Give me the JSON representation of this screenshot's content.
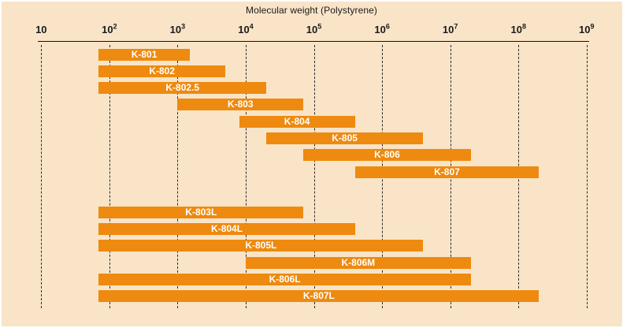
{
  "colors": {
    "page_background": "#FFFFFF",
    "panel_background": "#F9E4C8",
    "bar_fill": "#EE8A0F",
    "bar_label_text": "#FFFFFF",
    "axis_text": "#1A1A1A",
    "axis_line": "#111111",
    "gridline": "#2B2B2B"
  },
  "chart_data": {
    "type": "bar",
    "subtype": "horizontal-range-bars",
    "title": "Molecular weight (Polystyrene)",
    "x_axis": {
      "scale": "log10",
      "min": 10,
      "max": 1000000000,
      "grid": "vertical-dashed",
      "ticks": [
        {
          "value": 10,
          "base": "10",
          "sup": ""
        },
        {
          "value": 100,
          "base": "10",
          "sup": "2"
        },
        {
          "value": 1000,
          "base": "10",
          "sup": "3"
        },
        {
          "value": 10000,
          "base": "10",
          "sup": "4"
        },
        {
          "value": 100000,
          "base": "10",
          "sup": "5"
        },
        {
          "value": 1000000,
          "base": "10",
          "sup": "6"
        },
        {
          "value": 10000000,
          "base": "10",
          "sup": "7"
        },
        {
          "value": 100000000,
          "base": "10",
          "sup": "8"
        },
        {
          "value": 1000000000,
          "base": "10",
          "sup": "9"
        }
      ]
    },
    "bars": [
      {
        "label": "K-801",
        "group": 0,
        "mw_min": 70,
        "mw_max": 1500
      },
      {
        "label": "K-802",
        "group": 0,
        "mw_min": 70,
        "mw_max": 5000
      },
      {
        "label": "K-802.5",
        "group": 0,
        "mw_min": 70,
        "mw_max": 20000
      },
      {
        "label": "K-803",
        "group": 0,
        "mw_min": 1000,
        "mw_max": 70000
      },
      {
        "label": "K-804",
        "group": 0,
        "mw_min": 8000,
        "mw_max": 400000
      },
      {
        "label": "K-805",
        "group": 0,
        "mw_min": 20000,
        "mw_max": 4000000
      },
      {
        "label": "K-806",
        "group": 0,
        "mw_min": 70000,
        "mw_max": 20000000
      },
      {
        "label": "K-807",
        "group": 0,
        "mw_min": 400000,
        "mw_max": 200000000
      },
      {
        "label": "K-803L",
        "group": 1,
        "mw_min": 70,
        "mw_max": 70000
      },
      {
        "label": "K-804L",
        "group": 1,
        "mw_min": 70,
        "mw_max": 400000
      },
      {
        "label": "K-805L",
        "group": 1,
        "mw_min": 70,
        "mw_max": 4000000
      },
      {
        "label": "K-806M",
        "group": 1,
        "mw_min": 10000,
        "mw_max": 20000000
      },
      {
        "label": "K-806L",
        "group": 1,
        "mw_min": 70,
        "mw_max": 20000000
      },
      {
        "label": "K-807L",
        "group": 1,
        "mw_min": 70,
        "mw_max": 200000000
      }
    ]
  }
}
